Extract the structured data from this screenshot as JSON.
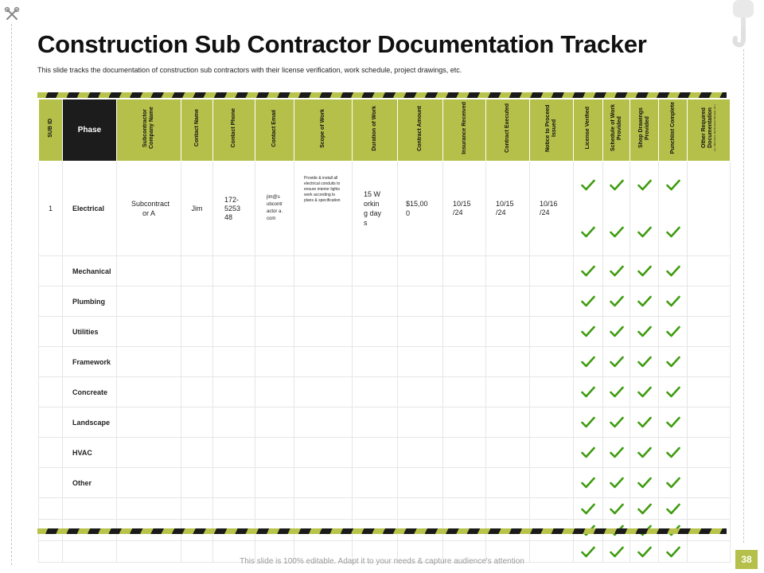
{
  "title": "Construction Sub Contractor Documentation Tracker",
  "subtitle": "This slide tracks the documentation of construction sub contractors with their license verification, work schedule, project drawings, etc.",
  "columns": {
    "sub_id": "SUB ID",
    "phase": "Phase",
    "company": "Subcontractor Company Name",
    "contact_name": "Contact Name",
    "contact_phone": "Contact Phone",
    "contact_email": "Contact Email",
    "scope": "Scope of Work",
    "duration": "Duration of Work",
    "amount": "Contract Amount",
    "insurance": "Insurance Received",
    "executed": "Contract Executed",
    "notice": "Notice to Proceed Issued",
    "license": "License Verified",
    "schedule": "Schedule of Work Provided",
    "drawings": "Shop Drawings Provided",
    "punchlist": "Punchlist Complete",
    "other_docs": "Other Required Documentation",
    "other_docs_note": "(i.e. Warranties, Maintenance Manuals, etc.)"
  },
  "first_row": {
    "sub_id": "1",
    "phase": "Electrical",
    "company": "Subcontract or A",
    "contact_name": "Jim",
    "contact_phone": "172-5253 48",
    "contact_email": "jim@subcontractor a.com",
    "scope": "Provide & install all electrical conduits to ensure interior lights work according to plans & specification",
    "duration": "15 Working days",
    "amount": "$15,000",
    "insurance": "10/15 /24",
    "executed": "10/15 /24",
    "notice": "10/16 /24"
  },
  "phases": [
    "Mechanical",
    "Plumbing",
    "Utilities",
    "Framework",
    "Concreate",
    "Landscape",
    "HVAC",
    "Other"
  ],
  "blank_rows": 3,
  "colors": {
    "accent": "#b5c04a",
    "check": "#3f9c0f",
    "header_dark": "#1c1c1c"
  },
  "icons": [
    "tools-icon",
    "crane-hook-icon",
    "check-icon"
  ],
  "footer": {
    "note": "This slide is 100% editable. Adapt it to your needs & capture audience's attention",
    "page_number": "38"
  }
}
